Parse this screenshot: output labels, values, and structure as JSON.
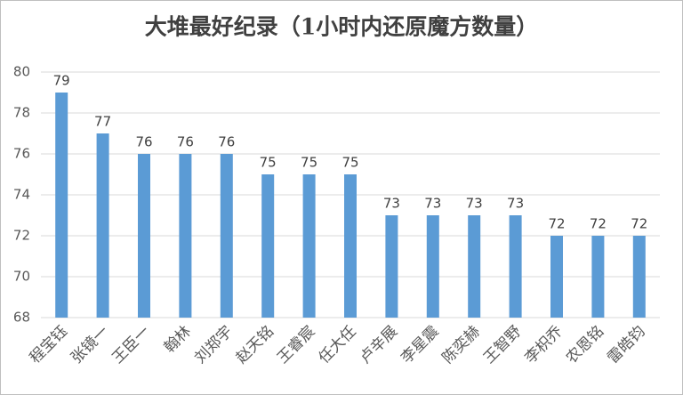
{
  "chart_data": {
    "type": "bar",
    "title": "大堆最好纪录（1小时内还原魔方数量）",
    "categories": [
      "程宝钰",
      "张镜一",
      "王臣一",
      "翰林",
      "刘郑宇",
      "赵天铭",
      "王睿宸",
      "任大任",
      "卢辛展",
      "李星震",
      "陈奕赫",
      "王智野",
      "李枳乔",
      "农恩铭",
      "雷皓钧"
    ],
    "values": [
      79,
      77,
      76,
      76,
      76,
      75,
      75,
      75,
      73,
      73,
      73,
      73,
      72,
      72,
      72
    ],
    "color": "#5b9bd5",
    "ylim": [
      68,
      80
    ],
    "yticks": [
      68,
      70,
      72,
      74,
      76,
      78,
      80
    ],
    "grid": true
  }
}
